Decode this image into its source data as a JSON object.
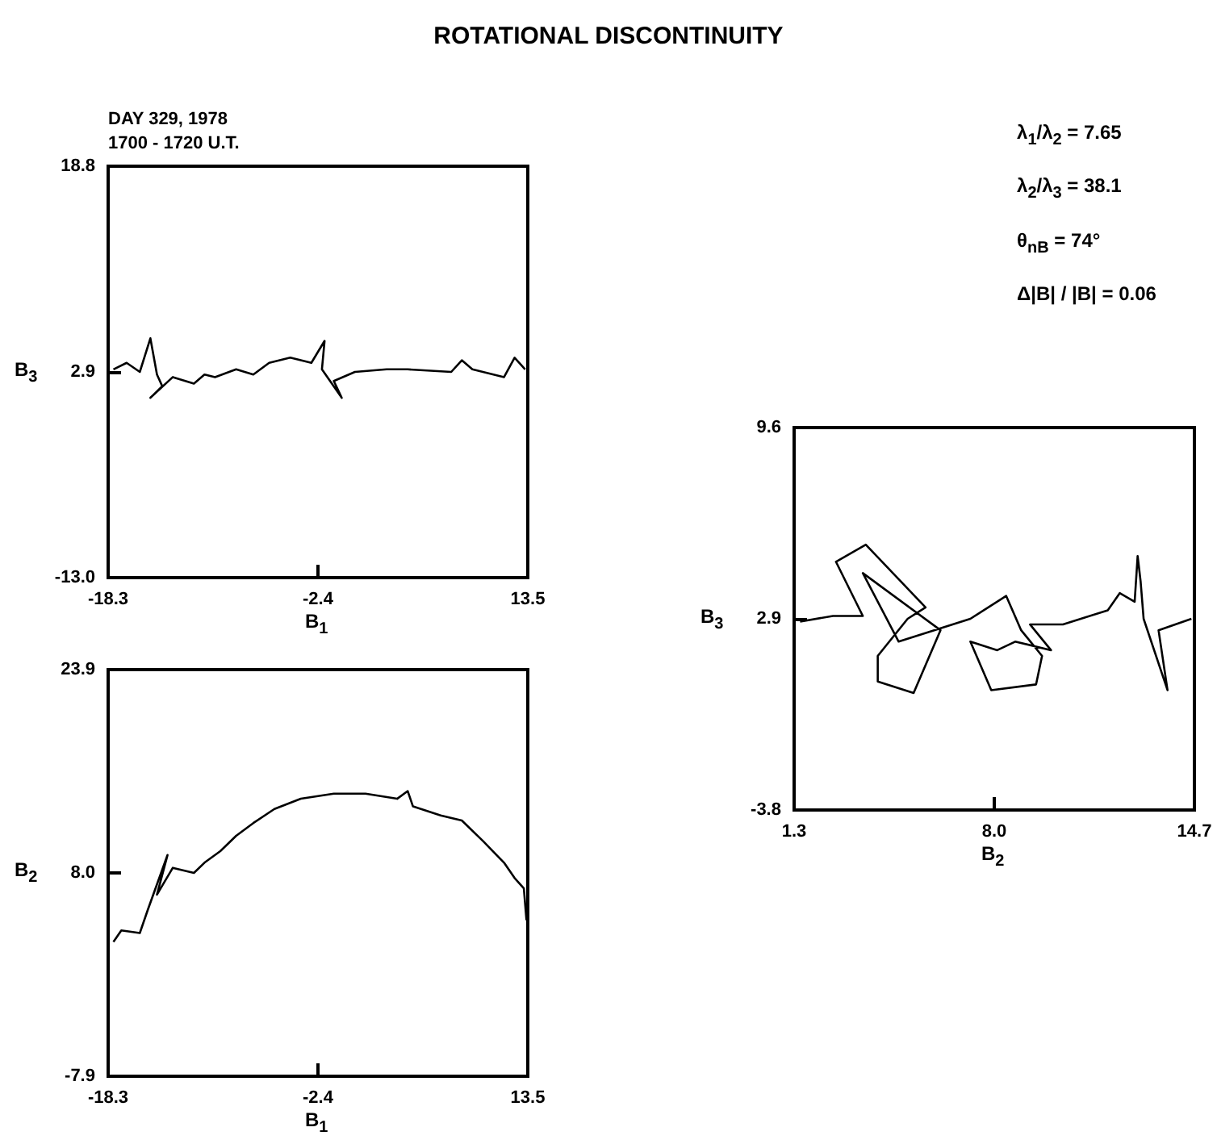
{
  "chart_data": [
    {
      "type": "line",
      "title": "ROTATIONAL DISCONTINUITY",
      "xlabel": "B$_{1}$",
      "ylabel": "B$_{3}$",
      "xlim": [
        -18.3,
        13.5
      ],
      "ylim": [
        -13.0,
        18.8
      ],
      "xticks": [
        -18.3,
        -2.4,
        13.5
      ],
      "yticks": [
        {
          "value": -13.0,
          "label": "-13.0"
        },
        2.9,
        18.8
      ],
      "marker": "none",
      "line_style": "solid",
      "annotations": [
        "DAY 329, 1978",
        "1700 - 1720 U.T."
      ],
      "series": [
        {
          "color": "#000000",
          "x": [
            -17.9,
            -16.9,
            -15.9,
            -15.1,
            -14.6,
            -14.2,
            -15.1,
            -13.4,
            -11.8,
            -11.0,
            -10.2,
            -8.6,
            -7.3,
            -6.1,
            -4.5,
            -2.9,
            -1.9,
            -2.1,
            -0.6,
            -1.2,
            0.4,
            2.8,
            4.4,
            7.7,
            8.5,
            9.3,
            11.7,
            12.5,
            13.3
          ],
          "values": [
            3.1,
            3.6,
            2.9,
            5.5,
            2.7,
            1.8,
            0.9,
            2.5,
            2.0,
            2.7,
            2.5,
            3.1,
            2.7,
            3.6,
            4.0,
            3.6,
            5.3,
            3.1,
            0.9,
            2.2,
            2.9,
            3.1,
            3.1,
            2.9,
            3.8,
            3.1,
            2.5,
            4.0,
            3.1
          ]
        }
      ]
    },
    {
      "type": "line",
      "xlabel": "B$_{1}$",
      "ylabel": "B$_{2}$",
      "xlim": [
        -18.3,
        13.5
      ],
      "ylim": [
        -7.9,
        23.9
      ],
      "xticks": [
        -18.3,
        -2.4,
        13.5
      ],
      "yticks": [
        -7.9,
        {
          "value": 8.0,
          "label": "8.0"
        },
        23.9
      ],
      "marker": "none",
      "line_style": "solid",
      "series": [
        {
          "color": "#000000",
          "x": [
            -17.9,
            -17.3,
            -15.9,
            -15.3,
            -13.8,
            -14.6,
            -13.4,
            -11.8,
            -11.0,
            -9.8,
            -8.6,
            -7.3,
            -5.7,
            -3.7,
            -1.2,
            1.2,
            3.6,
            4.4,
            4.8,
            6.9,
            8.5,
            10.1,
            11.7,
            12.5,
            13.2,
            13.4
          ],
          "values": [
            2.6,
            3.5,
            3.3,
            5.1,
            9.4,
            6.3,
            8.4,
            8.0,
            8.8,
            9.7,
            10.9,
            11.9,
            13.0,
            13.8,
            14.2,
            14.2,
            13.8,
            14.4,
            13.2,
            12.5,
            12.1,
            10.5,
            8.8,
            7.6,
            6.8,
            4.3
          ]
        }
      ]
    },
    {
      "type": "line",
      "xlabel": "B$_{2}$",
      "ylabel": "B$_{3}$",
      "xlim": [
        1.3,
        14.7
      ],
      "ylim": [
        -3.8,
        9.6
      ],
      "xticks": [
        1.3,
        {
          "value": 8.0,
          "label": "8.0"
        },
        14.7
      ],
      "yticks": [
        -3.8,
        2.9,
        9.6
      ],
      "marker": "none",
      "line_style": "solid",
      "annotations": [
        "λ$_{1}$/λ$_{2}$ = 7.65",
        "λ$_{2}$/λ$_{3}$ = 38.1",
        "θ$_{nB}$ = 74°",
        "Δ|B| / |B| = 0.06"
      ],
      "series": [
        {
          "color": "#000000",
          "x": [
            1.5,
            2.6,
            3.6,
            2.7,
            3.7,
            5.7,
            5.1,
            4.1,
            4.1,
            5.3,
            6.2,
            3.6,
            4.8,
            7.2,
            8.4,
            8.9,
            9.6,
            9.4,
            7.9,
            7.2,
            8.1,
            8.7,
            9.9,
            9.2,
            10.3,
            11.8,
            12.2,
            12.7,
            12.8,
            12.9,
            13.0,
            13.8,
            13.5,
            14.6
          ],
          "values": [
            2.8,
            3.0,
            3.0,
            4.9,
            5.5,
            3.3,
            2.9,
            1.6,
            0.7,
            0.3,
            2.5,
            4.5,
            2.1,
            2.9,
            3.7,
            2.5,
            1.6,
            0.6,
            0.4,
            2.1,
            1.8,
            2.1,
            1.8,
            2.7,
            2.7,
            3.2,
            3.8,
            3.5,
            5.1,
            4.2,
            2.9,
            0.4,
            2.5,
            2.9
          ]
        }
      ]
    }
  ]
}
